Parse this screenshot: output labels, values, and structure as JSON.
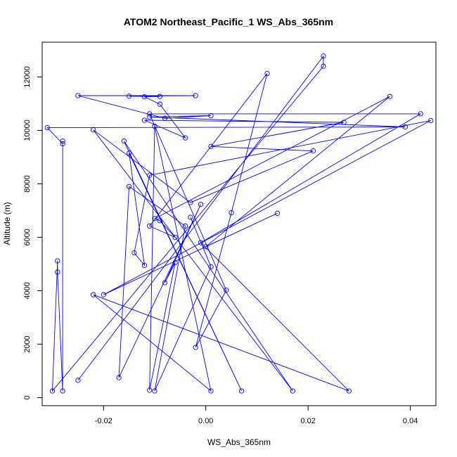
{
  "chart_data": {
    "type": "line",
    "title": "ATOM2 Northeast_Pacific_1 WS_Abs_365nm",
    "xlabel": "WS_Abs_365nm",
    "ylabel": "Altitude (m)",
    "xlim": [
      -0.032,
      0.045
    ],
    "ylim": [
      -300,
      13300
    ],
    "xticks": [
      -0.02,
      0.0,
      0.02,
      0.04
    ],
    "xtick_labels": [
      "-0.02",
      "0.00",
      "0.02",
      "0.04"
    ],
    "yticks": [
      0,
      2000,
      4000,
      6000,
      8000,
      10000,
      12000
    ],
    "ytick_labels": [
      "0",
      "2000",
      "4000",
      "6000",
      "8000",
      "10000",
      "12000"
    ],
    "grid": false,
    "series_color": "#0000ff",
    "markers": "open-circle",
    "series": [
      {
        "points": [
          [
            -0.025,
            650
          ],
          [
            0.023,
            12780
          ],
          [
            0.023,
            12400
          ],
          [
            -0.03,
            250
          ],
          [
            -0.029,
            5120
          ],
          [
            -0.029,
            4700
          ],
          [
            -0.028,
            250
          ],
          [
            -0.028,
            9600
          ],
          [
            -0.028,
            9500
          ],
          [
            -0.031,
            10100
          ],
          [
            0.039,
            10130
          ],
          [
            -0.011,
            10500
          ],
          [
            0.001,
            10550
          ],
          [
            -0.008,
            10450
          ],
          [
            -0.025,
            11300
          ],
          [
            -0.002,
            11300
          ],
          [
            -0.015,
            11280
          ],
          [
            -0.009,
            11270
          ],
          [
            -0.012,
            11260
          ],
          [
            -0.009,
            10980
          ],
          [
            -0.004,
            9720
          ],
          [
            -0.012,
            10380
          ],
          [
            0.027,
            10300
          ],
          [
            0.001,
            9400
          ],
          [
            0.021,
            9230
          ],
          [
            -0.003,
            7300
          ],
          [
            -0.022,
            10020
          ],
          [
            0.017,
            250
          ],
          [
            -0.016,
            9600
          ],
          [
            0.007,
            250
          ],
          [
            -0.015,
            9150
          ],
          [
            -0.012,
            4950
          ],
          [
            -0.014,
            5420
          ],
          [
            -0.011,
            8320
          ],
          [
            0.044,
            10370
          ],
          [
            -0.02,
            3850
          ],
          [
            0.014,
            6900
          ],
          [
            0.0,
            5650
          ],
          [
            0.036,
            11270
          ],
          [
            -0.01,
            6700
          ],
          [
            -0.009,
            6620
          ],
          [
            -0.006,
            6000
          ],
          [
            -0.011,
            6420
          ],
          [
            0.012,
            12130
          ],
          [
            0.005,
            6920
          ],
          [
            -0.002,
            1880
          ],
          [
            0.004,
            4020
          ],
          [
            -0.011,
            10620
          ],
          [
            0.042,
            10620
          ],
          [
            -0.001,
            5800
          ],
          [
            0.028,
            250
          ],
          [
            -0.022,
            3850
          ],
          [
            0.001,
            250
          ],
          [
            -0.01,
            10150
          ],
          [
            -0.011,
            280
          ],
          [
            -0.006,
            5050
          ],
          [
            -0.008,
            4300
          ],
          [
            -0.001,
            7230
          ],
          [
            -0.017,
            750
          ],
          [
            -0.015,
            7900
          ],
          [
            -0.004,
            6420
          ],
          [
            -0.01,
            250
          ],
          [
            0.001,
            4900
          ],
          [
            -0.003,
            6750
          ]
        ]
      }
    ]
  }
}
